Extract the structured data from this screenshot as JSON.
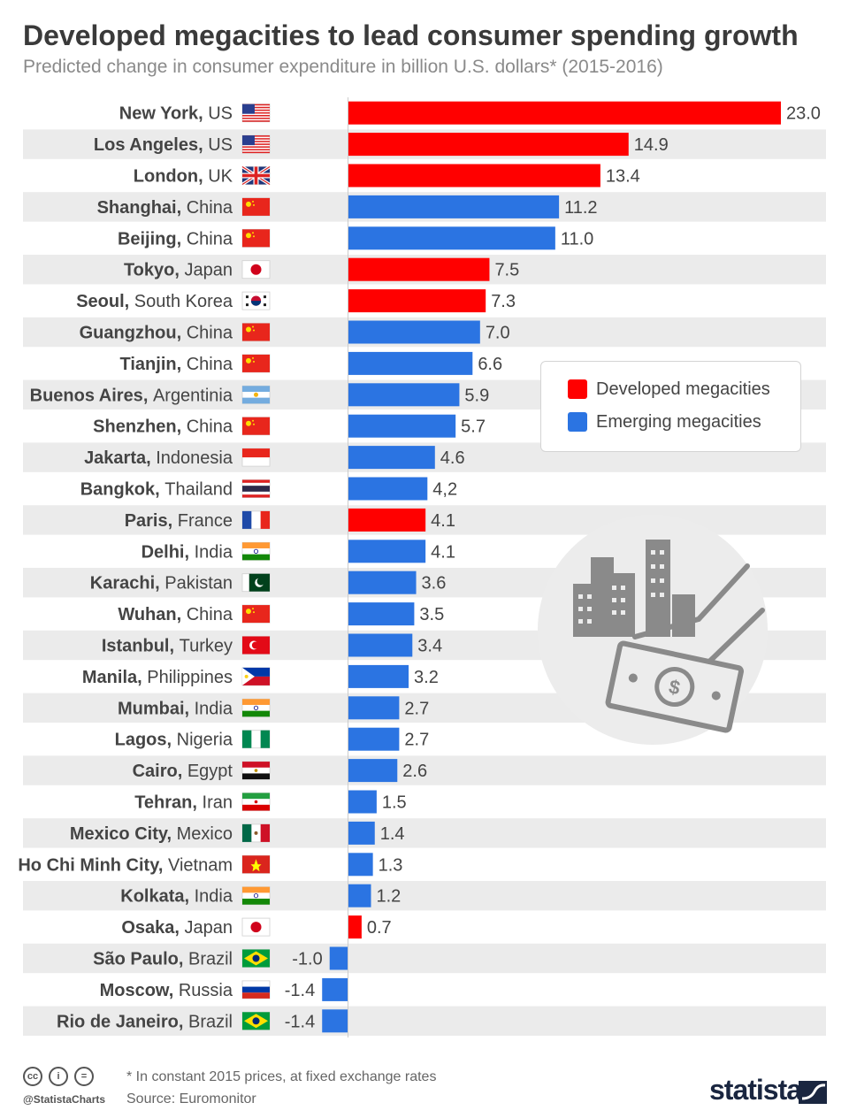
{
  "chart_data": {
    "type": "bar",
    "orientation": "horizontal",
    "title": "Developed megacities to lead consumer spending growth",
    "subtitle": "Predicted change in consumer expenditure in billion U.S. dollars* (2015-2016)",
    "legend": [
      {
        "name": "Developed megacities",
        "color": "#ff0000"
      },
      {
        "name": "Emerging megacities",
        "color": "#2b74e2"
      }
    ],
    "xlim": [
      -1.4,
      23.0
    ],
    "rows": [
      {
        "city": "New York",
        "country": "US",
        "flag": "flag-us",
        "value": 23.0,
        "label": "23.0",
        "group": "Developed megacities"
      },
      {
        "city": "Los Angeles",
        "country": "US",
        "flag": "flag-us",
        "value": 14.9,
        "label": "14.9",
        "group": "Developed megacities"
      },
      {
        "city": "London",
        "country": "UK",
        "flag": "flag-uk",
        "value": 13.4,
        "label": "13.4",
        "group": "Developed megacities"
      },
      {
        "city": "Shanghai",
        "country": "China",
        "flag": "flag-china",
        "value": 11.2,
        "label": "11.2",
        "group": "Emerging megacities"
      },
      {
        "city": "Beijing",
        "country": "China",
        "flag": "flag-china",
        "value": 11.0,
        "label": "11.0",
        "group": "Emerging megacities"
      },
      {
        "city": "Tokyo",
        "country": "Japan",
        "flag": "flag-japan",
        "value": 7.5,
        "label": "7.5",
        "group": "Developed megacities"
      },
      {
        "city": "Seoul",
        "country": "South Korea",
        "flag": "flag-south-korea",
        "value": 7.3,
        "label": "7.3",
        "group": "Developed megacities"
      },
      {
        "city": "Guangzhou",
        "country": "China",
        "flag": "flag-china",
        "value": 7.0,
        "label": "7.0",
        "group": "Emerging megacities"
      },
      {
        "city": "Tianjin",
        "country": "China",
        "flag": "flag-china",
        "value": 6.6,
        "label": "6.6",
        "group": "Emerging megacities"
      },
      {
        "city": "Buenos Aires",
        "country": "Argentinia",
        "flag": "flag-argentina",
        "value": 5.9,
        "label": "5.9",
        "group": "Emerging megacities"
      },
      {
        "city": "Shenzhen",
        "country": "China",
        "flag": "flag-china",
        "value": 5.7,
        "label": "5.7",
        "group": "Emerging megacities"
      },
      {
        "city": "Jakarta",
        "country": "Indonesia",
        "flag": "flag-indonesia",
        "value": 4.6,
        "label": "4.6",
        "group": "Emerging megacities"
      },
      {
        "city": "Bangkok",
        "country": "Thailand",
        "flag": "flag-thailand",
        "value": 4.2,
        "label": "4,2",
        "group": "Emerging megacities"
      },
      {
        "city": "Paris",
        "country": "France",
        "flag": "flag-france",
        "value": 4.1,
        "label": "4.1",
        "group": "Developed megacities"
      },
      {
        "city": "Delhi",
        "country": "India",
        "flag": "flag-india",
        "value": 4.1,
        "label": "4.1",
        "group": "Emerging megacities"
      },
      {
        "city": "Karachi",
        "country": "Pakistan",
        "flag": "flag-pakistan",
        "value": 3.6,
        "label": "3.6",
        "group": "Emerging megacities"
      },
      {
        "city": "Wuhan",
        "country": "China",
        "flag": "flag-china",
        "value": 3.5,
        "label": "3.5",
        "group": "Emerging megacities"
      },
      {
        "city": "Istanbul",
        "country": "Turkey",
        "flag": "flag-turkey",
        "value": 3.4,
        "label": "3.4",
        "group": "Emerging megacities"
      },
      {
        "city": "Manila",
        "country": "Philippines",
        "flag": "flag-philippines",
        "value": 3.2,
        "label": "3.2",
        "group": "Emerging megacities"
      },
      {
        "city": "Mumbai",
        "country": "India",
        "flag": "flag-india",
        "value": 2.7,
        "label": "2.7",
        "group": "Emerging megacities"
      },
      {
        "city": "Lagos",
        "country": "Nigeria",
        "flag": "flag-nigeria",
        "value": 2.7,
        "label": "2.7",
        "group": "Emerging megacities"
      },
      {
        "city": "Cairo",
        "country": "Egypt",
        "flag": "flag-egypt",
        "value": 2.6,
        "label": "2.6",
        "group": "Emerging megacities"
      },
      {
        "city": "Tehran",
        "country": "Iran",
        "flag": "flag-iran",
        "value": 1.5,
        "label": "1.5",
        "group": "Emerging megacities"
      },
      {
        "city": "Mexico City",
        "country": "Mexico",
        "flag": "flag-mexico",
        "value": 1.4,
        "label": "1.4",
        "group": "Emerging megacities"
      },
      {
        "city": "Ho Chi Minh City",
        "country": "Vietnam",
        "flag": "flag-vietnam",
        "value": 1.3,
        "label": "1.3",
        "group": "Emerging megacities"
      },
      {
        "city": "Kolkata",
        "country": "India",
        "flag": "flag-india",
        "value": 1.2,
        "label": "1.2",
        "group": "Emerging megacities"
      },
      {
        "city": "Osaka",
        "country": "Japan",
        "flag": "flag-japan",
        "value": 0.7,
        "label": "0.7",
        "group": "Developed megacities"
      },
      {
        "city": "São Paulo",
        "country": "Brazil",
        "flag": "flag-brazil",
        "value": -1.0,
        "label": "-1.0",
        "group": "Emerging megacities"
      },
      {
        "city": "Moscow",
        "country": "Russia",
        "flag": "flag-russia",
        "value": -1.4,
        "label": "-1.4",
        "group": "Emerging megacities"
      },
      {
        "city": "Rio de Janeiro",
        "country": "Brazil",
        "flag": "flag-brazil",
        "value": -1.4,
        "label": "-1.4",
        "group": "Emerging megacities"
      }
    ]
  },
  "decoration": {
    "illustration": "city-buildings-money-hand-icon"
  },
  "footer": {
    "license_icons": [
      "cc-icon",
      "attribution-icon",
      "no-derivatives-icon"
    ],
    "license_glyphs": [
      "cc",
      "i",
      "="
    ],
    "handle": "@StatistaCharts",
    "footnote": "* In constant 2015 prices, at fixed exchange rates",
    "source": "Source: Euromonitor",
    "brand": "statista"
  }
}
